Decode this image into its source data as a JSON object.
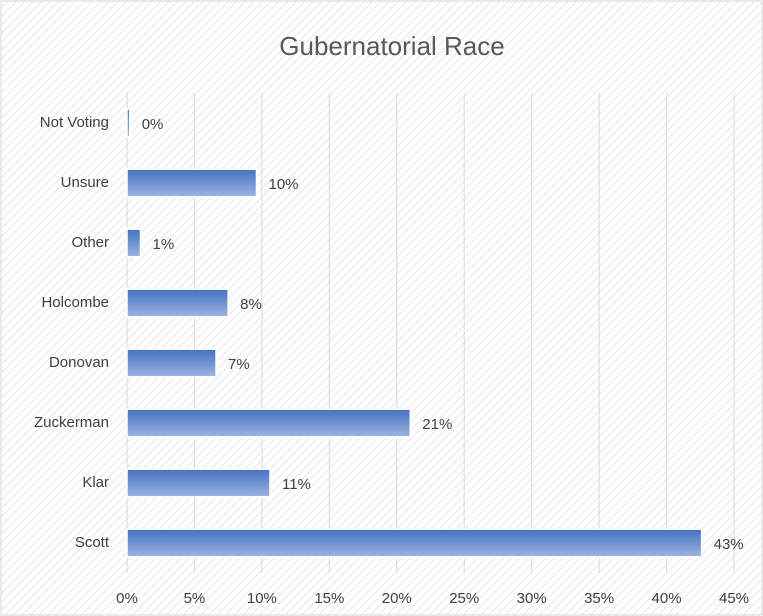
{
  "chart_data": {
    "type": "hbar",
    "title": "Gubernatorial Race",
    "categories": [
      "Not Voting",
      "Unsure",
      "Other",
      "Holcombe",
      "Donovan",
      "Zuckerman",
      "Klar",
      "Scott"
    ],
    "values": [
      0.2,
      9.6,
      1.0,
      7.5,
      6.6,
      21.0,
      10.6,
      42.6
    ],
    "value_labels": [
      "0%",
      "10%",
      "1%",
      "8%",
      "7%",
      "21%",
      "11%",
      "43%"
    ],
    "color": "#4472c4",
    "xlim": [
      0,
      45
    ],
    "xticks": [
      {
        "value": 0,
        "label": "0%"
      },
      {
        "value": 5,
        "label": "5%"
      },
      {
        "value": 10,
        "label": "10%"
      },
      {
        "value": 15,
        "label": "15%"
      },
      {
        "value": 20,
        "label": "20%"
      },
      {
        "value": 25,
        "label": "25%"
      },
      {
        "value": 30,
        "label": "30%"
      },
      {
        "value": 35,
        "label": "35%"
      },
      {
        "value": 40,
        "label": "40%"
      },
      {
        "value": 45,
        "label": "45%"
      }
    ],
    "grid": true
  }
}
